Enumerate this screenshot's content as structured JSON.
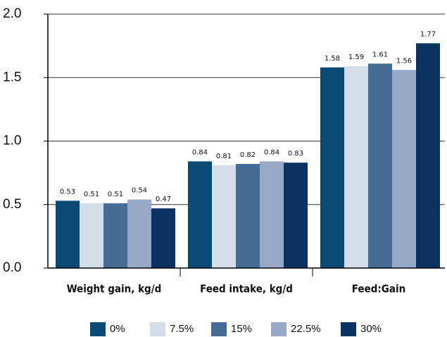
{
  "chart_data": {
    "type": "bar",
    "categories": [
      "Weight gain, kg/d",
      "Feed intake, kg/d",
      "Feed:Gain"
    ],
    "series": [
      {
        "name": "0%",
        "color": "#0b4a75",
        "values": [
          0.53,
          0.84,
          1.58
        ]
      },
      {
        "name": "7.5%",
        "color": "#d5dde9",
        "values": [
          0.51,
          0.81,
          1.59
        ]
      },
      {
        "name": "15%",
        "color": "#466b95",
        "values": [
          0.51,
          0.82,
          1.61
        ]
      },
      {
        "name": "22.5%",
        "color": "#97a9c6",
        "values": [
          0.54,
          0.84,
          1.56
        ]
      },
      {
        "name": "30%",
        "color": "#0c3261",
        "values": [
          0.47,
          0.83,
          1.77
        ]
      }
    ],
    "ylim": [
      0,
      2
    ],
    "yticks": [
      {
        "value": 0,
        "label": "0.0"
      },
      0.5,
      {
        "value": 1,
        "label": "1.0"
      },
      1.5,
      {
        "value": 2,
        "label": "2.0"
      }
    ],
    "grid": true,
    "legend": "bottom"
  }
}
